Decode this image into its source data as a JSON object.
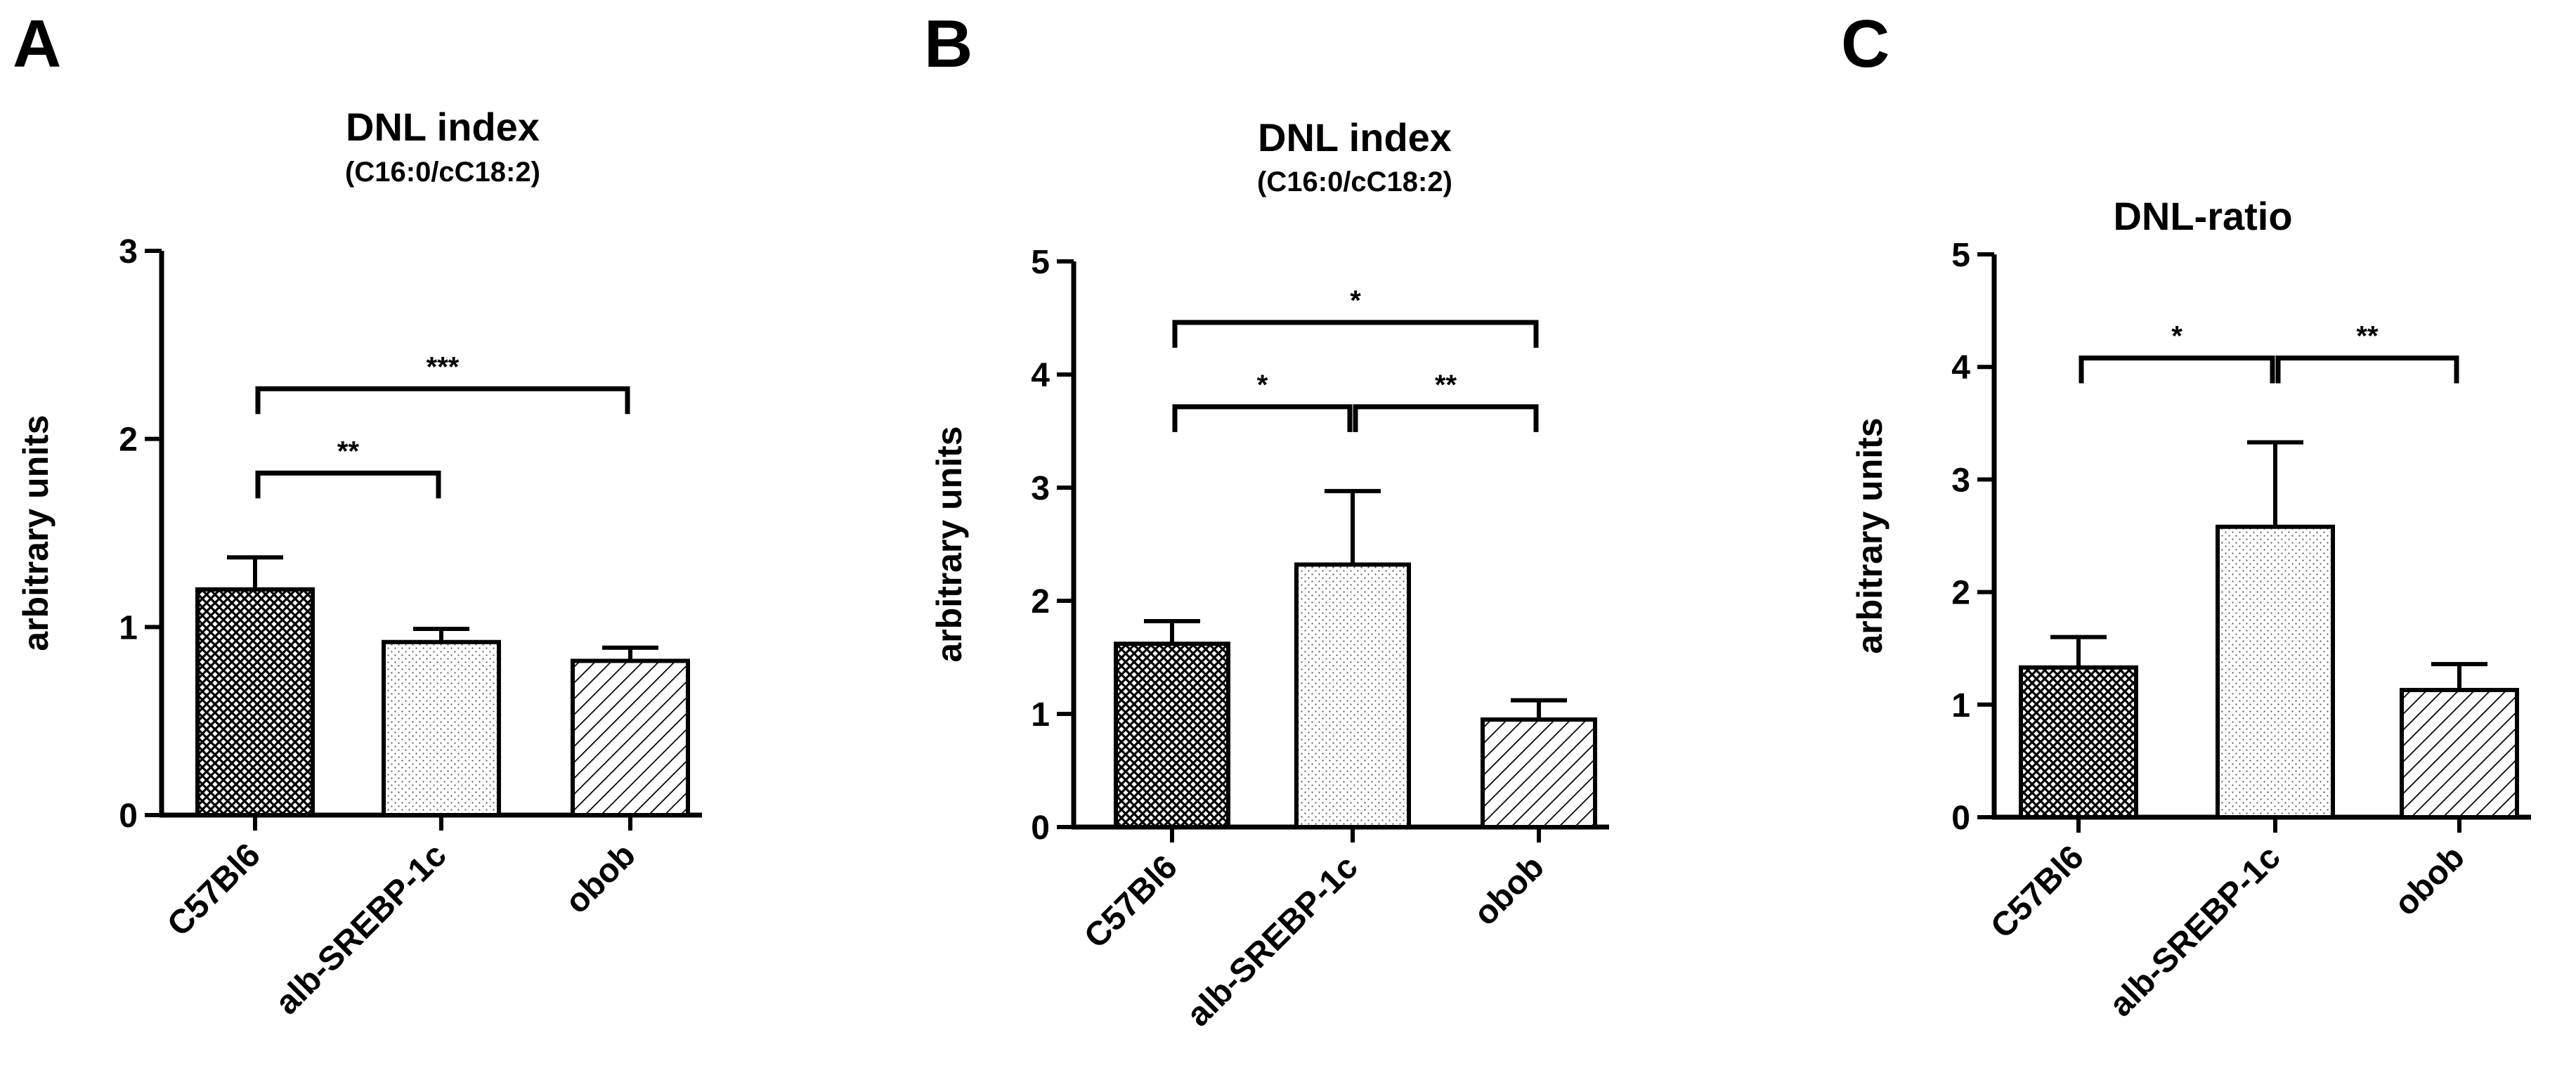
{
  "chart_data": [
    {
      "panel": "A",
      "type": "bar",
      "title": "DNL index",
      "subtitle": "(C16:0/cC18:2)",
      "ylabel": "arbitrary units",
      "xlabel": "",
      "ylim": [
        0,
        3
      ],
      "yticks": [
        "0",
        "1",
        "2",
        "3"
      ],
      "categories": [
        "C57Bl6",
        "alb-SREBP-1c",
        "obob"
      ],
      "values": [
        1.2,
        0.92,
        0.82
      ],
      "errors": [
        0.17,
        0.07,
        0.07
      ],
      "patterns": [
        "crosshatch",
        "dots",
        "diagonal"
      ],
      "significance": [
        {
          "from": 0,
          "to": 1,
          "label": "**"
        },
        {
          "from": 0,
          "to": 2,
          "label": "***"
        }
      ]
    },
    {
      "panel": "B",
      "type": "bar",
      "title": "DNL index",
      "subtitle": "(C16:0/cC18:2)",
      "ylabel": "arbitrary units",
      "xlabel": "",
      "ylim": [
        0,
        5
      ],
      "yticks": [
        "0",
        "1",
        "2",
        "3",
        "4",
        "5"
      ],
      "categories": [
        "C57Bl6",
        "alb-SREBP-1c",
        "obob"
      ],
      "values": [
        1.62,
        2.32,
        0.95
      ],
      "errors": [
        0.2,
        0.65,
        0.17
      ],
      "patterns": [
        "crosshatch",
        "dots",
        "diagonal"
      ],
      "significance": [
        {
          "from": 0,
          "to": 1,
          "label": "*"
        },
        {
          "from": 1,
          "to": 2,
          "label": "**"
        },
        {
          "from": 0,
          "to": 2,
          "label": "*"
        }
      ]
    },
    {
      "panel": "C",
      "type": "bar",
      "title": "DNL-ratio",
      "subtitle": "",
      "ylabel": "arbitrary units",
      "xlabel": "",
      "ylim": [
        0,
        5
      ],
      "yticks": [
        "0",
        "1",
        "2",
        "3",
        "4",
        "5"
      ],
      "categories": [
        "C57Bl6",
        "alb-SREBP-1c",
        "obob"
      ],
      "values": [
        1.33,
        2.58,
        1.13
      ],
      "errors": [
        0.27,
        0.75,
        0.23
      ],
      "patterns": [
        "crosshatch",
        "dots",
        "diagonal"
      ],
      "significance": [
        {
          "from": 0,
          "to": 1,
          "label": "*"
        },
        {
          "from": 1,
          "to": 2,
          "label": "**"
        }
      ]
    }
  ],
  "colors": {
    "ink": "#000000",
    "bar_fill": "#ffffff",
    "pattern": "#000000"
  }
}
